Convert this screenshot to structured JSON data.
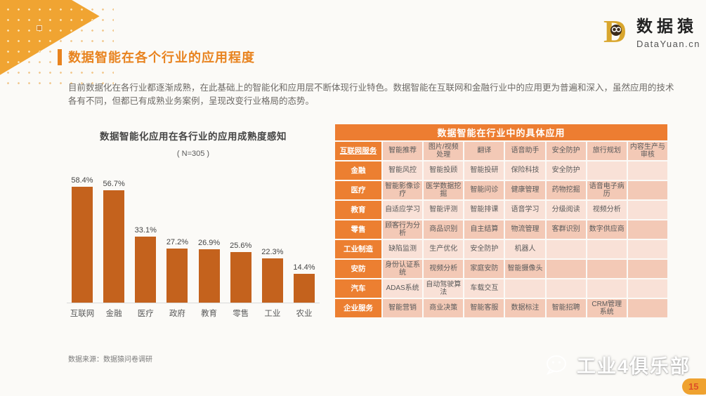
{
  "page": {
    "page_number": "15"
  },
  "logo": {
    "mark_letter": "D",
    "name": "数据猿",
    "domain": "DataYuan.cn"
  },
  "header": {
    "title": "数据智能在各个行业的应用程度"
  },
  "intro": {
    "text": "目前数据化在各行业都逐渐成熟，在此基础上的智能化和应用层不断体现行业特色。数据智能在互联网和金融行业中的应用更为普遍和深入，虽然应用的技术各有不同，但都已有成熟业务案例，呈现改变行业格局的态势。"
  },
  "chart_data": {
    "type": "bar",
    "title": "数据智能化应用在各行业的应用成熟度感知",
    "subtitle": "( N=305 )",
    "categories": [
      "互联网",
      "金融",
      "医疗",
      "政府",
      "教育",
      "零售",
      "工业",
      "农业"
    ],
    "values": [
      58.4,
      56.7,
      33.1,
      27.2,
      26.9,
      25.6,
      22.3,
      14.4
    ],
    "data_labels": [
      "58.4%",
      "56.7%",
      "33.1%",
      "27.2%",
      "26.9%",
      "25.6%",
      "22.3%",
      "14.4%"
    ],
    "unit": "%",
    "ylim": [
      0,
      60
    ],
    "bar_color": "#C4621D",
    "grid": false,
    "legend": "none",
    "source": "数据来源：数据猿问卷调研"
  },
  "source_note": "数据来源：数据猿问卷调研",
  "table": {
    "title": "数据智能在行业中的具体应用",
    "rows": [
      {
        "label": "互联网服务",
        "cells": [
          "智能推荐",
          "图片/视频处理",
          "翻译",
          "语音助手",
          "安全防护",
          "旅行规划",
          "内容生产与审核"
        ]
      },
      {
        "label": "金融",
        "cells": [
          "智能风控",
          "智能投顾",
          "智能投研",
          "保险科技",
          "安全防护",
          "",
          ""
        ]
      },
      {
        "label": "医疗",
        "cells": [
          "智能影像诊疗",
          "医学数据挖掘",
          "智能问诊",
          "健康管理",
          "药物挖掘",
          "语音电子病历",
          ""
        ]
      },
      {
        "label": "教育",
        "cells": [
          "自适应学习",
          "智能评测",
          "智能排课",
          "语音学习",
          "分级阅读",
          "视频分析",
          ""
        ]
      },
      {
        "label": "零售",
        "cells": [
          "顾客行为分析",
          "商品识别",
          "自主结算",
          "物流管理",
          "客群识别",
          "数字供应商",
          ""
        ]
      },
      {
        "label": "工业制造",
        "cells": [
          "缺陷监测",
          "生产优化",
          "安全防护",
          "机器人",
          "",
          "",
          ""
        ]
      },
      {
        "label": "安防",
        "cells": [
          "身份认证系统",
          "视频分析",
          "家庭安防",
          "智能摄像头",
          "",
          "",
          ""
        ]
      },
      {
        "label": "汽车",
        "cells": [
          "ADAS系统",
          "自动驾驶算法",
          "车载交互",
          "",
          "",
          "",
          ""
        ]
      },
      {
        "label": "企业服务",
        "cells": [
          "智能营销",
          "商业决策",
          "智能客服",
          "数据标注",
          "智能招聘",
          "CRM管理系统",
          ""
        ]
      }
    ]
  },
  "watermark": {
    "text": "工业4俱乐部"
  },
  "colors": {
    "accent_orange": "#E8831F",
    "table_header_orange": "#ED7D31",
    "row_odd": "#F3C9B6",
    "row_even": "#F9E1D7",
    "bar": "#C4621D",
    "flag": "#F0A432",
    "badge": "#EFA230"
  }
}
